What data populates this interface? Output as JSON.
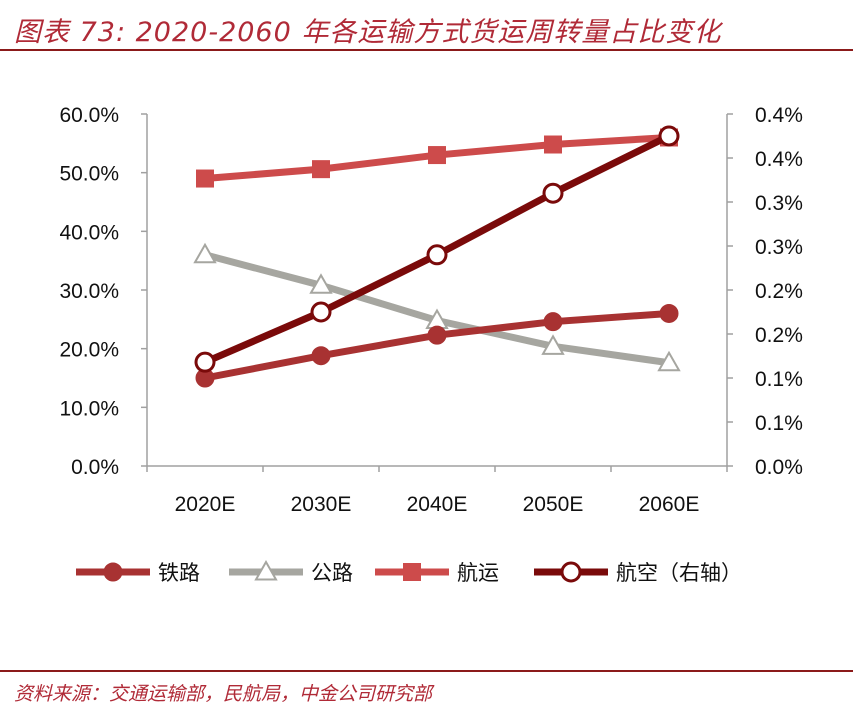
{
  "header": {
    "title": "图表 73: 2020-2060 年各运输方式货运周转量占比变化"
  },
  "footer": {
    "source": "资料来源：交通运输部，民航局，中金公司研究部"
  },
  "chart_data": {
    "type": "line",
    "categories": [
      "2020E",
      "2030E",
      "2040E",
      "2050E",
      "2060E"
    ],
    "left_axis": {
      "ticks": [
        "0.0%",
        "10.0%",
        "20.0%",
        "30.0%",
        "40.0%",
        "50.0%",
        "60.0%"
      ],
      "range": [
        0,
        60
      ]
    },
    "right_axis": {
      "ticks": [
        "0.0%",
        "0.1%",
        "0.1%",
        "0.2%",
        "0.2%",
        "0.3%",
        "0.3%",
        "0.4%",
        "0.4%"
      ],
      "range": [
        0,
        0.4
      ]
    },
    "series": [
      {
        "name": "铁路",
        "axis": "left",
        "color": "#a83232",
        "marker": "filled-circle",
        "values": [
          15.0,
          18.8,
          22.3,
          24.6,
          26.0
        ]
      },
      {
        "name": "公路",
        "axis": "left",
        "color": "#a6a6a0",
        "marker": "open-triangle",
        "values": [
          36.0,
          30.8,
          24.8,
          20.4,
          17.6
        ]
      },
      {
        "name": "航运",
        "axis": "left",
        "color": "#cd4b4b",
        "marker": "filled-square",
        "values": [
          49.0,
          50.6,
          53.0,
          54.8,
          56.0
        ]
      },
      {
        "name": "航空（右轴）",
        "axis": "right",
        "color": "#7a0a0a",
        "marker": "open-circle",
        "values": [
          0.118,
          0.175,
          0.24,
          0.31,
          0.375
        ]
      }
    ],
    "legend_position": "bottom",
    "grid": false
  }
}
